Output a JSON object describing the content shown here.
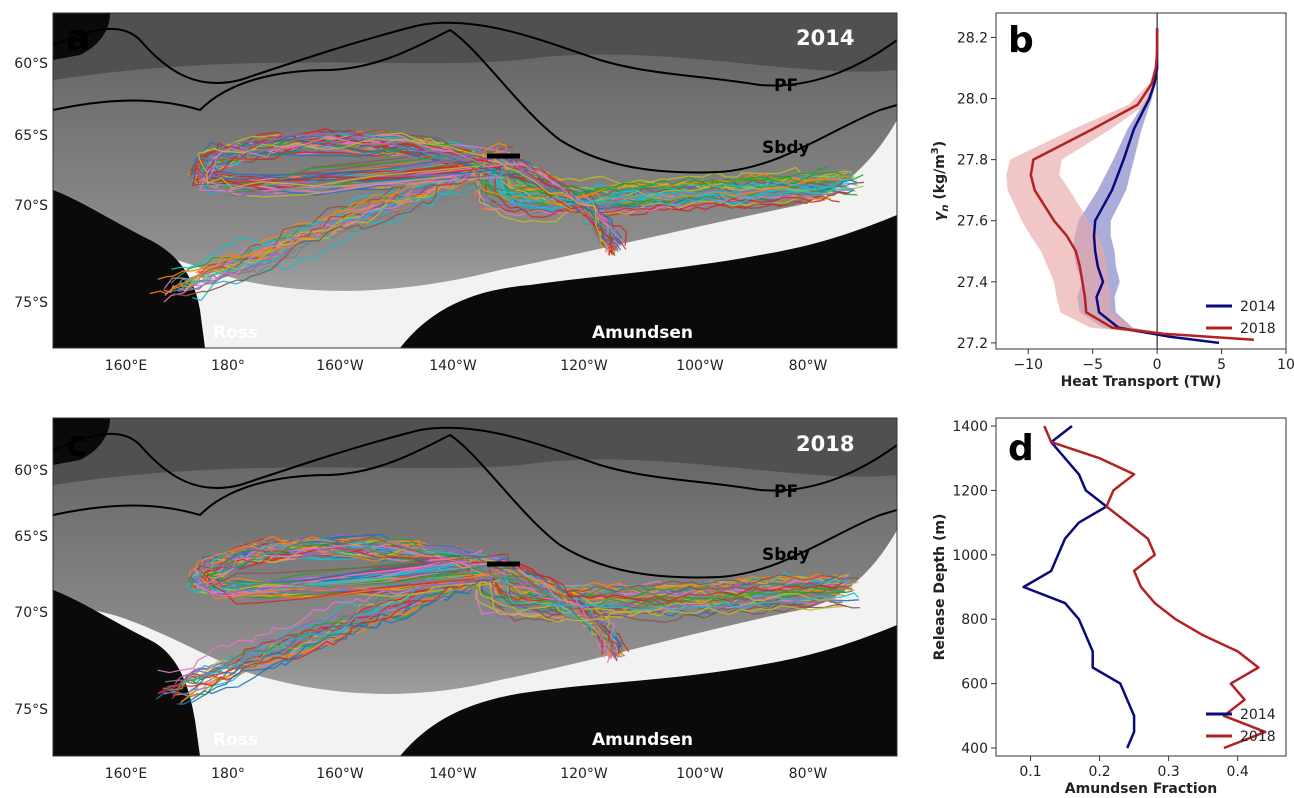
{
  "maps": [
    {
      "letter": "a",
      "year": "2014",
      "front_labels": {
        "pf": "PF",
        "sbdy": "Sbdy"
      },
      "region_labels": {
        "ross": "Ross",
        "amundsen": "Amundsen"
      },
      "lat_ticks": [
        "60°S",
        "65°S",
        "70°S",
        "75°S"
      ],
      "lon_ticks": [
        "160°E",
        "180°",
        "160°W",
        "140°W",
        "120°W",
        "100°W",
        "80°W"
      ]
    },
    {
      "letter": "c",
      "year": "2018",
      "front_labels": {
        "pf": "PF",
        "sbdy": "Sbdy"
      },
      "region_labels": {
        "ross": "Ross",
        "amundsen": "Amundsen"
      },
      "lat_ticks": [
        "60°S",
        "65°S",
        "70°S",
        "75°S"
      ],
      "lon_ticks": [
        "160°E",
        "180°",
        "160°W",
        "140°W",
        "120°W",
        "100°W",
        "80°W"
      ]
    }
  ],
  "chart_data": [
    {
      "panel": "b",
      "type": "line",
      "xlabel": "Heat Transport (TW)",
      "ylabel": "γn (kg/m³)",
      "ylabel_parts": {
        "symbol": "γ",
        "sub": "n",
        "rest": " (kg/m",
        "sup": "3",
        "close": ")"
      },
      "xlim": [
        -12.5,
        10
      ],
      "ylim": [
        28.28,
        27.18
      ],
      "xticks": [
        -10,
        -5,
        0,
        5,
        10
      ],
      "yticks": [
        27.2,
        27.4,
        27.6,
        27.8,
        28.0,
        28.2
      ],
      "xtick_labels": [
        "−10",
        "−5",
        "0",
        "5",
        "10"
      ],
      "ytick_labels": [
        "27.2",
        "27.4",
        "27.6",
        "27.8",
        "28.0",
        "28.2"
      ],
      "legend_position": "lower-right",
      "series": [
        {
          "name": "2014",
          "color": "#0a0a7a",
          "band_color": "#8080c8",
          "y": [
            27.2,
            27.22,
            27.25,
            27.3,
            27.35,
            27.4,
            27.45,
            27.5,
            27.55,
            27.6,
            27.7,
            27.8,
            27.9,
            28.0,
            28.05,
            28.1,
            28.15,
            28.2,
            28.23
          ],
          "x": [
            4.8,
            1.0,
            -3.0,
            -4.5,
            -4.7,
            -4.2,
            -4.6,
            -4.8,
            -4.9,
            -4.8,
            -3.5,
            -2.6,
            -1.8,
            -0.6,
            -0.2,
            0.0,
            0.0,
            0.0,
            0.0
          ],
          "lo": [
            4.8,
            0.6,
            -4.2,
            -6.0,
            -6.2,
            -5.8,
            -6.3,
            -6.5,
            -6.4,
            -6.1,
            -4.6,
            -3.4,
            -2.3,
            -0.8,
            -0.3,
            0.0,
            0.0,
            0.0,
            0.0
          ],
          "hi": [
            4.8,
            1.4,
            -1.9,
            -3.2,
            -3.3,
            -2.9,
            -3.2,
            -3.3,
            -3.6,
            -3.6,
            -2.4,
            -1.8,
            -1.2,
            -0.4,
            -0.1,
            0.0,
            0.0,
            0.0,
            0.0
          ]
        },
        {
          "name": "2018",
          "color": "#b22222",
          "band_color": "#e8a8a8",
          "y": [
            27.21,
            27.23,
            27.25,
            27.3,
            27.35,
            27.4,
            27.45,
            27.5,
            27.55,
            27.6,
            27.7,
            27.75,
            27.8,
            27.9,
            27.98,
            28.05,
            28.1,
            28.15,
            28.2,
            28.23
          ],
          "x": [
            7.5,
            0.5,
            -3.5,
            -5.5,
            -5.6,
            -5.8,
            -6.0,
            -6.3,
            -7.0,
            -8.0,
            -9.5,
            -9.8,
            -9.6,
            -5.0,
            -1.5,
            -0.4,
            -0.1,
            0.0,
            0.0,
            0.0
          ],
          "lo": [
            7.5,
            -0.3,
            -5.2,
            -7.5,
            -7.8,
            -8.0,
            -8.5,
            -9.0,
            -9.8,
            -10.5,
            -11.6,
            -11.7,
            -11.4,
            -6.5,
            -2.2,
            -0.6,
            -0.2,
            0.0,
            0.0,
            0.0
          ],
          "hi": [
            7.5,
            1.0,
            -1.9,
            -3.6,
            -3.6,
            -3.8,
            -3.9,
            -4.1,
            -4.6,
            -5.3,
            -6.8,
            -7.6,
            -7.4,
            -3.6,
            -0.9,
            -0.2,
            0.0,
            0.0,
            0.0,
            0.0
          ]
        }
      ]
    },
    {
      "panel": "d",
      "type": "line",
      "xlabel": "Amundsen Fraction",
      "ylabel": "Release Depth (m)",
      "xlim": [
        0.05,
        0.47
      ],
      "ylim": [
        1425,
        375
      ],
      "xticks": [
        0.1,
        0.2,
        0.3,
        0.4
      ],
      "yticks": [
        400,
        600,
        800,
        1000,
        1200,
        1400
      ],
      "xtick_labels": [
        "0.1",
        "0.2",
        "0.3",
        "0.4"
      ],
      "ytick_labels": [
        "400",
        "600",
        "800",
        "1000",
        "1200",
        "1400"
      ],
      "legend_position": "lower-right",
      "series": [
        {
          "name": "2014",
          "color": "#0a0a7a",
          "y": [
            400,
            450,
            500,
            550,
            600,
            650,
            700,
            750,
            800,
            850,
            900,
            950,
            1000,
            1050,
            1100,
            1150,
            1200,
            1250,
            1300,
            1350,
            1400
          ],
          "x": [
            0.24,
            0.25,
            0.25,
            0.24,
            0.23,
            0.19,
            0.19,
            0.18,
            0.17,
            0.15,
            0.09,
            0.13,
            0.14,
            0.15,
            0.17,
            0.21,
            0.18,
            0.17,
            0.15,
            0.13,
            0.16
          ]
        },
        {
          "name": "2018",
          "color": "#b22222",
          "y": [
            400,
            450,
            500,
            550,
            600,
            650,
            700,
            750,
            800,
            850,
            900,
            950,
            1000,
            1050,
            1100,
            1150,
            1200,
            1250,
            1300,
            1350,
            1400
          ],
          "x": [
            0.38,
            0.44,
            0.38,
            0.41,
            0.39,
            0.43,
            0.4,
            0.35,
            0.31,
            0.28,
            0.26,
            0.25,
            0.28,
            0.27,
            0.24,
            0.21,
            0.22,
            0.25,
            0.2,
            0.13,
            0.12
          ]
        }
      ]
    }
  ]
}
